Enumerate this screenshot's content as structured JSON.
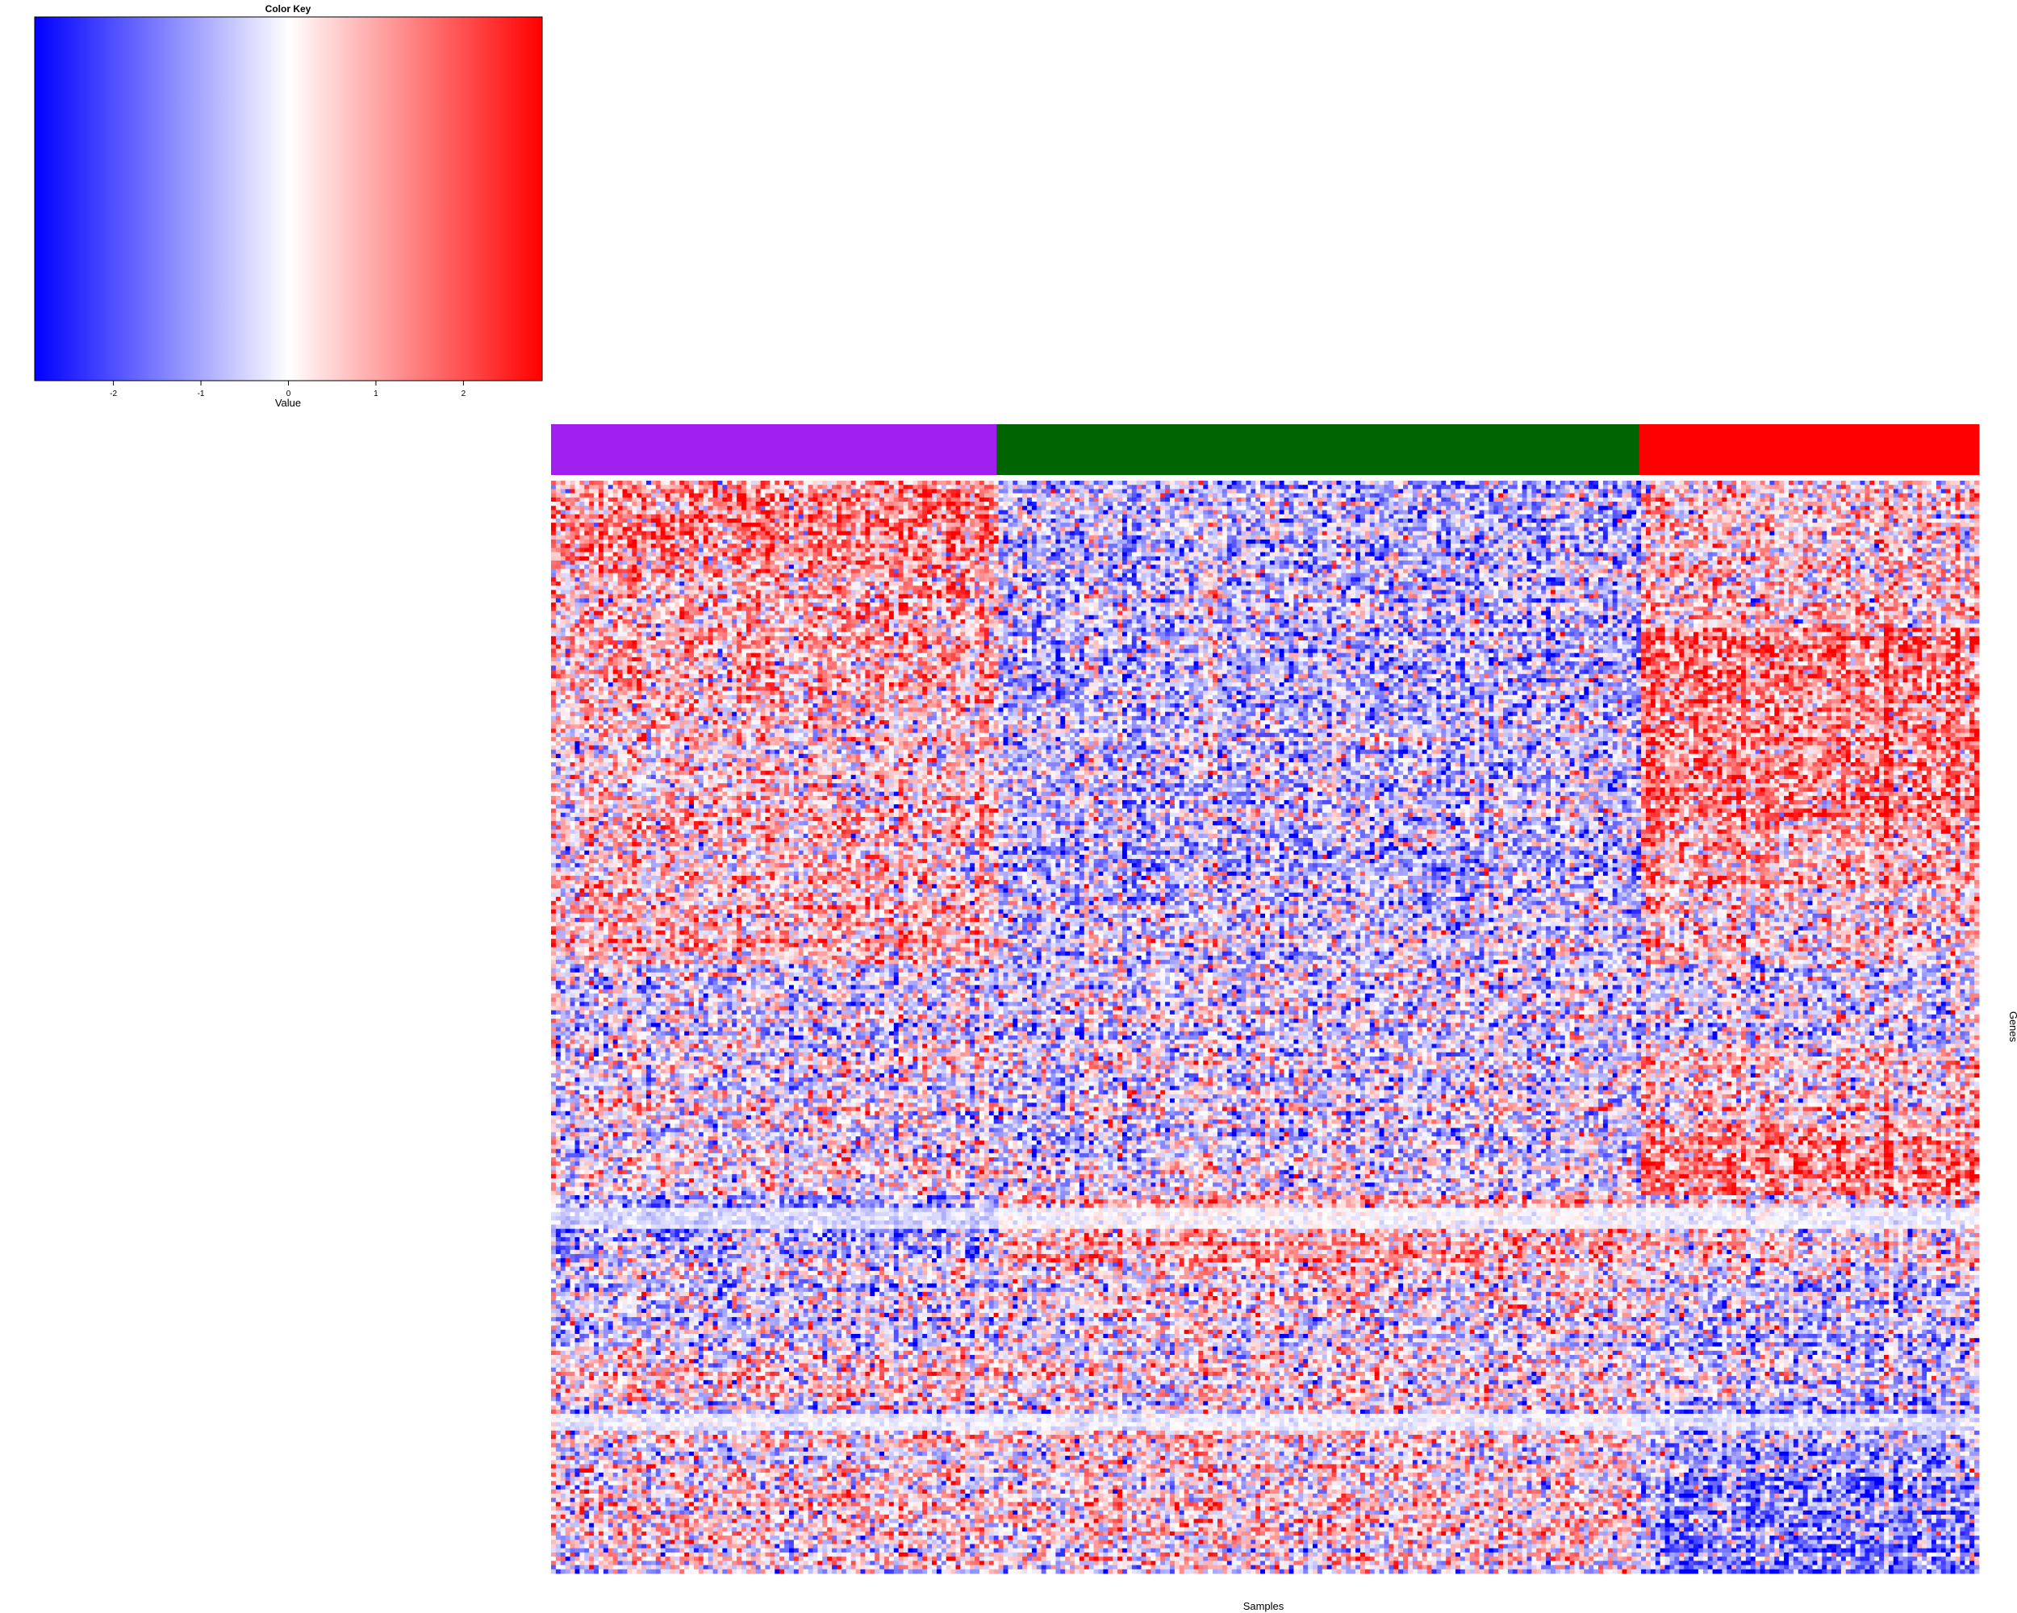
{
  "chart_data": [
    {
      "type": "colorbar",
      "title": "Color Key",
      "xlabel": "Value",
      "range": [
        -2.9,
        2.9
      ],
      "ticks": [
        -2,
        -1,
        0,
        1,
        2
      ],
      "tick_labels": [
        "-2",
        "-1",
        "0",
        "1",
        "2"
      ],
      "colors": {
        "low": "#0000ff",
        "mid": "#ffffff",
        "high": "#ff0000"
      }
    },
    {
      "type": "heatmap",
      "xlabel": "Samples",
      "ylabel": "Genes",
      "value_range": [
        -2.9,
        2.9
      ],
      "sample_groups": [
        {
          "color": "#a020f0",
          "fraction": 0.312
        },
        {
          "color": "#006400",
          "fraction": 0.45
        },
        {
          "color": "#ff0000",
          "fraction": 0.238
        }
      ],
      "gene_blocks": [
        {
          "rows": 0.065,
          "group_means": [
            1.3,
            -0.7,
            0.4
          ]
        },
        {
          "rows": 0.055,
          "group_means": [
            0.7,
            -0.6,
            0.5
          ]
        },
        {
          "rows": 0.07,
          "group_means": [
            0.6,
            -0.9,
            1.3
          ]
        },
        {
          "rows": 0.085,
          "group_means": [
            0.3,
            -0.6,
            1.3
          ]
        },
        {
          "rows": 0.06,
          "group_means": [
            0.5,
            -0.7,
            0.8
          ]
        },
        {
          "rows": 0.06,
          "group_means": [
            0.6,
            -0.5,
            0.3
          ]
        },
        {
          "rows": 0.07,
          "group_means": [
            -0.2,
            -0.2,
            -0.2
          ]
        },
        {
          "rows": 0.06,
          "group_means": [
            -0.1,
            -0.3,
            0.4
          ]
        },
        {
          "rows": 0.06,
          "group_means": [
            -0.2,
            -0.5,
            1.1
          ]
        },
        {
          "rows": 0.055,
          "group_means": [
            -1.0,
            0.7,
            0.1
          ]
        },
        {
          "rows": 0.065,
          "group_means": [
            -0.2,
            0.2,
            -0.3
          ]
        },
        {
          "rows": 0.05,
          "group_means": [
            0.3,
            0.1,
            -0.4
          ]
        },
        {
          "rows": 0.06,
          "group_means": [
            0.0,
            0.2,
            -0.9
          ]
        },
        {
          "rows": 0.08,
          "group_means": [
            0.2,
            0.3,
            -1.3
          ]
        }
      ],
      "pale_bands": [
        {
          "position": 0.665,
          "height": 0.02
        },
        {
          "position": 0.853,
          "height": 0.018
        }
      ]
    }
  ]
}
